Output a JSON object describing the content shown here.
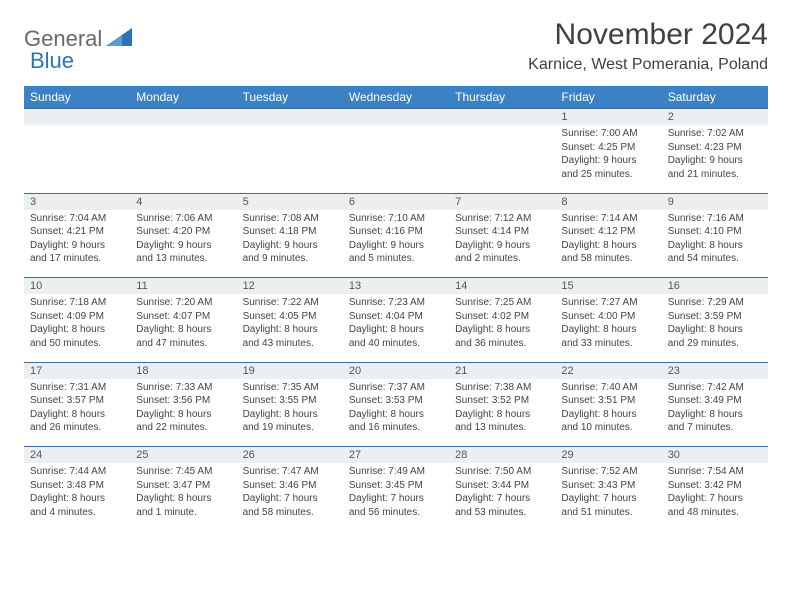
{
  "logo": {
    "part1": "General",
    "part2": "Blue"
  },
  "title": "November 2024",
  "location": "Karnice, West Pomerania, Poland",
  "colors": {
    "header_bg": "#3c81c4",
    "header_text": "#ffffff",
    "daynum_bg": "#eceff2",
    "row_border": "#3c6ca0",
    "logo_gray": "#6a6a6a",
    "logo_blue": "#2e74b5",
    "text": "#404040"
  },
  "weekdays": [
    "Sunday",
    "Monday",
    "Tuesday",
    "Wednesday",
    "Thursday",
    "Friday",
    "Saturday"
  ],
  "weeks": [
    [
      null,
      null,
      null,
      null,
      null,
      {
        "day": "1",
        "sunrise": "Sunrise: 7:00 AM",
        "sunset": "Sunset: 4:25 PM",
        "daylight1": "Daylight: 9 hours",
        "daylight2": "and 25 minutes."
      },
      {
        "day": "2",
        "sunrise": "Sunrise: 7:02 AM",
        "sunset": "Sunset: 4:23 PM",
        "daylight1": "Daylight: 9 hours",
        "daylight2": "and 21 minutes."
      }
    ],
    [
      {
        "day": "3",
        "sunrise": "Sunrise: 7:04 AM",
        "sunset": "Sunset: 4:21 PM",
        "daylight1": "Daylight: 9 hours",
        "daylight2": "and 17 minutes."
      },
      {
        "day": "4",
        "sunrise": "Sunrise: 7:06 AM",
        "sunset": "Sunset: 4:20 PM",
        "daylight1": "Daylight: 9 hours",
        "daylight2": "and 13 minutes."
      },
      {
        "day": "5",
        "sunrise": "Sunrise: 7:08 AM",
        "sunset": "Sunset: 4:18 PM",
        "daylight1": "Daylight: 9 hours",
        "daylight2": "and 9 minutes."
      },
      {
        "day": "6",
        "sunrise": "Sunrise: 7:10 AM",
        "sunset": "Sunset: 4:16 PM",
        "daylight1": "Daylight: 9 hours",
        "daylight2": "and 5 minutes."
      },
      {
        "day": "7",
        "sunrise": "Sunrise: 7:12 AM",
        "sunset": "Sunset: 4:14 PM",
        "daylight1": "Daylight: 9 hours",
        "daylight2": "and 2 minutes."
      },
      {
        "day": "8",
        "sunrise": "Sunrise: 7:14 AM",
        "sunset": "Sunset: 4:12 PM",
        "daylight1": "Daylight: 8 hours",
        "daylight2": "and 58 minutes."
      },
      {
        "day": "9",
        "sunrise": "Sunrise: 7:16 AM",
        "sunset": "Sunset: 4:10 PM",
        "daylight1": "Daylight: 8 hours",
        "daylight2": "and 54 minutes."
      }
    ],
    [
      {
        "day": "10",
        "sunrise": "Sunrise: 7:18 AM",
        "sunset": "Sunset: 4:09 PM",
        "daylight1": "Daylight: 8 hours",
        "daylight2": "and 50 minutes."
      },
      {
        "day": "11",
        "sunrise": "Sunrise: 7:20 AM",
        "sunset": "Sunset: 4:07 PM",
        "daylight1": "Daylight: 8 hours",
        "daylight2": "and 47 minutes."
      },
      {
        "day": "12",
        "sunrise": "Sunrise: 7:22 AM",
        "sunset": "Sunset: 4:05 PM",
        "daylight1": "Daylight: 8 hours",
        "daylight2": "and 43 minutes."
      },
      {
        "day": "13",
        "sunrise": "Sunrise: 7:23 AM",
        "sunset": "Sunset: 4:04 PM",
        "daylight1": "Daylight: 8 hours",
        "daylight2": "and 40 minutes."
      },
      {
        "day": "14",
        "sunrise": "Sunrise: 7:25 AM",
        "sunset": "Sunset: 4:02 PM",
        "daylight1": "Daylight: 8 hours",
        "daylight2": "and 36 minutes."
      },
      {
        "day": "15",
        "sunrise": "Sunrise: 7:27 AM",
        "sunset": "Sunset: 4:00 PM",
        "daylight1": "Daylight: 8 hours",
        "daylight2": "and 33 minutes."
      },
      {
        "day": "16",
        "sunrise": "Sunrise: 7:29 AM",
        "sunset": "Sunset: 3:59 PM",
        "daylight1": "Daylight: 8 hours",
        "daylight2": "and 29 minutes."
      }
    ],
    [
      {
        "day": "17",
        "sunrise": "Sunrise: 7:31 AM",
        "sunset": "Sunset: 3:57 PM",
        "daylight1": "Daylight: 8 hours",
        "daylight2": "and 26 minutes."
      },
      {
        "day": "18",
        "sunrise": "Sunrise: 7:33 AM",
        "sunset": "Sunset: 3:56 PM",
        "daylight1": "Daylight: 8 hours",
        "daylight2": "and 22 minutes."
      },
      {
        "day": "19",
        "sunrise": "Sunrise: 7:35 AM",
        "sunset": "Sunset: 3:55 PM",
        "daylight1": "Daylight: 8 hours",
        "daylight2": "and 19 minutes."
      },
      {
        "day": "20",
        "sunrise": "Sunrise: 7:37 AM",
        "sunset": "Sunset: 3:53 PM",
        "daylight1": "Daylight: 8 hours",
        "daylight2": "and 16 minutes."
      },
      {
        "day": "21",
        "sunrise": "Sunrise: 7:38 AM",
        "sunset": "Sunset: 3:52 PM",
        "daylight1": "Daylight: 8 hours",
        "daylight2": "and 13 minutes."
      },
      {
        "day": "22",
        "sunrise": "Sunrise: 7:40 AM",
        "sunset": "Sunset: 3:51 PM",
        "daylight1": "Daylight: 8 hours",
        "daylight2": "and 10 minutes."
      },
      {
        "day": "23",
        "sunrise": "Sunrise: 7:42 AM",
        "sunset": "Sunset: 3:49 PM",
        "daylight1": "Daylight: 8 hours",
        "daylight2": "and 7 minutes."
      }
    ],
    [
      {
        "day": "24",
        "sunrise": "Sunrise: 7:44 AM",
        "sunset": "Sunset: 3:48 PM",
        "daylight1": "Daylight: 8 hours",
        "daylight2": "and 4 minutes."
      },
      {
        "day": "25",
        "sunrise": "Sunrise: 7:45 AM",
        "sunset": "Sunset: 3:47 PM",
        "daylight1": "Daylight: 8 hours",
        "daylight2": "and 1 minute."
      },
      {
        "day": "26",
        "sunrise": "Sunrise: 7:47 AM",
        "sunset": "Sunset: 3:46 PM",
        "daylight1": "Daylight: 7 hours",
        "daylight2": "and 58 minutes."
      },
      {
        "day": "27",
        "sunrise": "Sunrise: 7:49 AM",
        "sunset": "Sunset: 3:45 PM",
        "daylight1": "Daylight: 7 hours",
        "daylight2": "and 56 minutes."
      },
      {
        "day": "28",
        "sunrise": "Sunrise: 7:50 AM",
        "sunset": "Sunset: 3:44 PM",
        "daylight1": "Daylight: 7 hours",
        "daylight2": "and 53 minutes."
      },
      {
        "day": "29",
        "sunrise": "Sunrise: 7:52 AM",
        "sunset": "Sunset: 3:43 PM",
        "daylight1": "Daylight: 7 hours",
        "daylight2": "and 51 minutes."
      },
      {
        "day": "30",
        "sunrise": "Sunrise: 7:54 AM",
        "sunset": "Sunset: 3:42 PM",
        "daylight1": "Daylight: 7 hours",
        "daylight2": "and 48 minutes."
      }
    ]
  ]
}
